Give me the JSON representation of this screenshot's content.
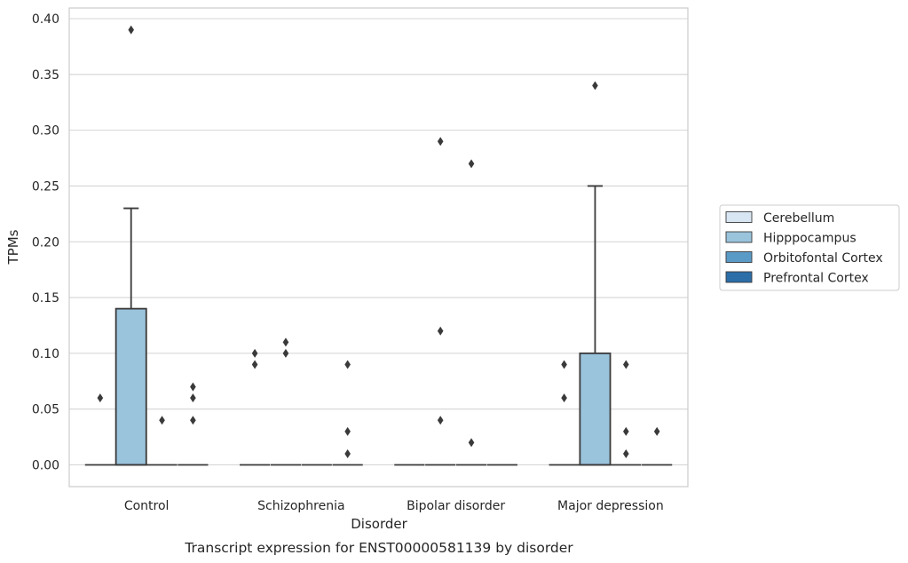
{
  "chart_data": {
    "type": "box",
    "title": "",
    "caption": "Transcript expression for ENST00000581139 by disorder",
    "xlabel": "Disorder",
    "ylabel": "TPMs",
    "ylim": [
      -0.02,
      0.41
    ],
    "yticks": [
      "0.00",
      "0.05",
      "0.10",
      "0.15",
      "0.20",
      "0.25",
      "0.30",
      "0.35",
      "0.40"
    ],
    "grid": "horizontal",
    "legend_position": "right",
    "categories": [
      "Control",
      "Schizophrenia",
      "Bipolar disorder",
      "Major depression"
    ],
    "series": [
      {
        "name": "Cerebellum",
        "color": "#d8e5f2",
        "boxes": [
          {
            "category": "Control",
            "q1": 0,
            "median": 0,
            "q3": 0,
            "whisker_low": 0,
            "whisker_high": 0,
            "outliers": [
              0.06
            ]
          },
          {
            "category": "Schizophrenia",
            "q1": 0,
            "median": 0,
            "q3": 0,
            "whisker_low": 0,
            "whisker_high": 0,
            "outliers": [
              0.09,
              0.1
            ]
          },
          {
            "category": "Bipolar disorder",
            "q1": 0,
            "median": 0,
            "q3": 0,
            "whisker_low": 0,
            "whisker_high": 0,
            "outliers": []
          },
          {
            "category": "Major depression",
            "q1": 0,
            "median": 0,
            "q3": 0,
            "whisker_low": 0,
            "whisker_high": 0,
            "outliers": [
              0.06,
              0.09
            ]
          }
        ]
      },
      {
        "name": "Hipppocampus",
        "color": "#9ac3dc",
        "boxes": [
          {
            "category": "Control",
            "q1": 0,
            "median": 0,
            "q3": 0.14,
            "whisker_low": 0,
            "whisker_high": 0.23,
            "outliers": [
              0.39
            ]
          },
          {
            "category": "Schizophrenia",
            "q1": 0,
            "median": 0,
            "q3": 0,
            "whisker_low": 0,
            "whisker_high": 0,
            "outliers": [
              0.1,
              0.11
            ]
          },
          {
            "category": "Bipolar disorder",
            "q1": 0,
            "median": 0,
            "q3": 0,
            "whisker_low": 0,
            "whisker_high": 0,
            "outliers": [
              0.29,
              0.12,
              0.04
            ]
          },
          {
            "category": "Major depression",
            "q1": 0,
            "median": 0,
            "q3": 0.1,
            "whisker_low": 0,
            "whisker_high": 0.25,
            "outliers": [
              0.34
            ]
          }
        ]
      },
      {
        "name": "Orbitofontal Cortex",
        "color": "#5a9ac7",
        "boxes": [
          {
            "category": "Control",
            "q1": 0,
            "median": 0,
            "q3": 0,
            "whisker_low": 0,
            "whisker_high": 0,
            "outliers": [
              0.04
            ]
          },
          {
            "category": "Schizophrenia",
            "q1": 0,
            "median": 0,
            "q3": 0,
            "whisker_low": 0,
            "whisker_high": 0,
            "outliers": []
          },
          {
            "category": "Bipolar disorder",
            "q1": 0,
            "median": 0,
            "q3": 0,
            "whisker_low": 0,
            "whisker_high": 0,
            "outliers": [
              0.27,
              0.02
            ]
          },
          {
            "category": "Major depression",
            "q1": 0,
            "median": 0,
            "q3": 0,
            "whisker_low": 0,
            "whisker_high": 0,
            "outliers": [
              0.09,
              0.03,
              0.01
            ]
          }
        ]
      },
      {
        "name": "Prefrontal Cortex",
        "color": "#2b6ea8",
        "boxes": [
          {
            "category": "Control",
            "q1": 0,
            "median": 0,
            "q3": 0,
            "whisker_low": 0,
            "whisker_high": 0,
            "outliers": [
              0.07,
              0.06,
              0.04
            ]
          },
          {
            "category": "Schizophrenia",
            "q1": 0,
            "median": 0,
            "q3": 0,
            "whisker_low": 0,
            "whisker_high": 0,
            "outliers": [
              0.09,
              0.03,
              0.01
            ]
          },
          {
            "category": "Bipolar disorder",
            "q1": 0,
            "median": 0,
            "q3": 0,
            "whisker_low": 0,
            "whisker_high": 0,
            "outliers": []
          },
          {
            "category": "Major depression",
            "q1": 0,
            "median": 0,
            "q3": 0,
            "whisker_low": 0,
            "whisker_high": 0,
            "outliers": [
              0.03
            ]
          }
        ]
      }
    ]
  }
}
